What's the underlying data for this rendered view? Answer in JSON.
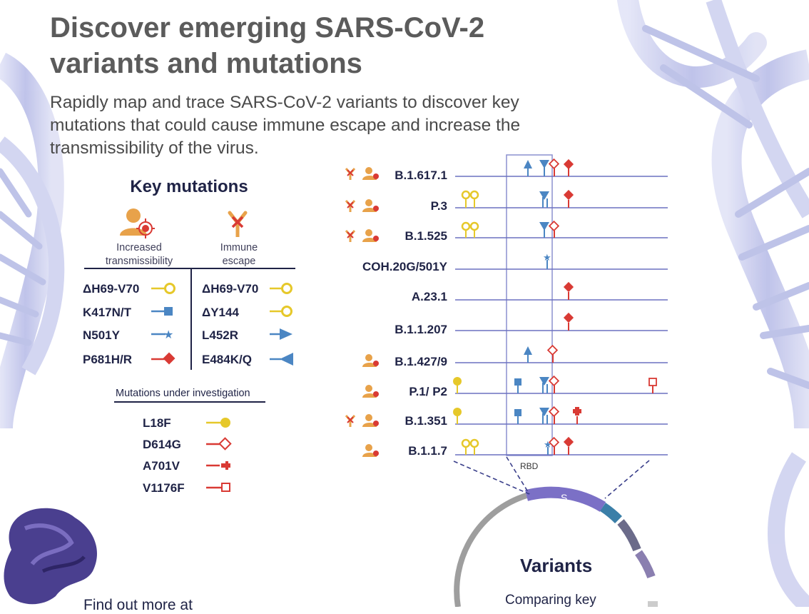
{
  "header": {
    "title": "Discover emerging SARS-CoV-2 variants and mutations",
    "title_line1": "Discover emerging SARS-CoV-2",
    "title_line2": "variants and mutations",
    "intro": "Rapidly map and trace SARS-CoV-2 variants to discover key mutations that could cause immune escape and increase the transmissibility of the virus."
  },
  "key_mutations": {
    "heading": "Key mutations",
    "transmissibility": {
      "label_line1": "Increased",
      "label_line2": "transmissibility",
      "items": [
        "ΔH69-V70",
        "K417N/T",
        "N501Y",
        "P681H/R"
      ]
    },
    "immune_escape": {
      "label_line1": "Immune",
      "label_line2": "escape",
      "items": [
        "ΔH69-V70",
        "ΔY144",
        "L452R",
        "E484K/Q"
      ]
    },
    "under_investigation": {
      "heading": "Mutations under investigation",
      "items": [
        "L18F",
        "D614G",
        "A701V",
        "V1176F"
      ]
    }
  },
  "variants": {
    "rows": [
      "B.1.617.1",
      "P.3",
      "B.1.525",
      "COH.20G/501Y",
      "A.23.1",
      "B.1.1.207",
      "B.1.427/9",
      "P.1/ P2",
      "B.1.351",
      "B.1.1.7"
    ],
    "rbd_label": "RBD",
    "genome_segment": "S",
    "heading": "Variants",
    "subheading": "Comparing key"
  },
  "footer": {
    "text": "Find out more at"
  },
  "colors": {
    "navy": "#1f2346",
    "yellow": "#e6c82a",
    "blue": "#4b86c3",
    "red": "#d93a34",
    "orange": "#e8a24a",
    "line": "#7f84c4",
    "dna": "#c7cbee"
  },
  "icons": [
    "antibody-icon",
    "person-virus-icon",
    "lollipop-icon",
    "square-marker-icon",
    "star-marker-icon",
    "diamond-marker-icon",
    "arrow-marker-icon",
    "triangle-flag-icon",
    "cross-marker-icon",
    "open-square-icon"
  ]
}
